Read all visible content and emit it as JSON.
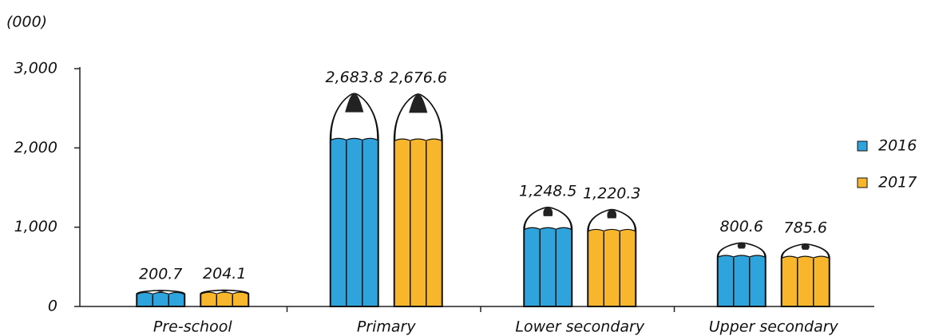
{
  "chart_data": {
    "type": "bar",
    "unit_label": "(000)",
    "categories": [
      "Pre-school",
      "Primary",
      "Lower secondary",
      "Upper secondary"
    ],
    "series": [
      {
        "name": "2016",
        "color": "#2ea3dc",
        "values": [
          200.7,
          2683.8,
          1248.5,
          800.6
        ],
        "value_labels": [
          "200.7",
          "2,683.8",
          "1,248.5",
          "800.6"
        ]
      },
      {
        "name": "2017",
        "color": "#f8b62d",
        "values": [
          204.1,
          2676.6,
          1220.3,
          785.6
        ],
        "value_labels": [
          "204.1",
          "2,676.6",
          "1,220.3",
          "785.6"
        ]
      }
    ],
    "ylim": [
      0,
      3000
    ],
    "yticks": [
      0,
      {
        "value": 1000,
        "label": "1,000"
      },
      {
        "value": 2000,
        "label": "2,000"
      },
      {
        "value": 3000,
        "label": "3,000"
      }
    ],
    "legend": "right"
  }
}
